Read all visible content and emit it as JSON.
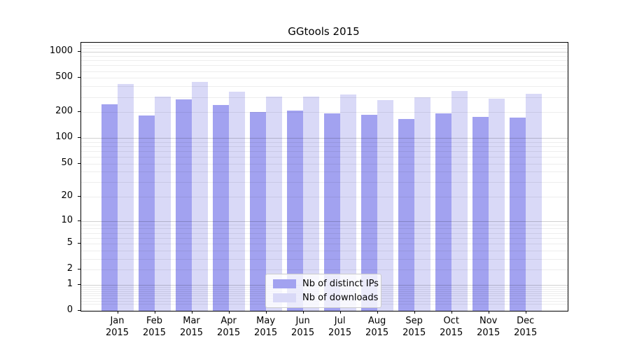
{
  "title": "GGtools 2015",
  "chart_data": {
    "type": "bar",
    "title": "GGtools 2015",
    "categories": [
      "Jan 2015",
      "Feb 2015",
      "Mar 2015",
      "Apr 2015",
      "May 2015",
      "Jun 2015",
      "Jul 2015",
      "Aug 2015",
      "Sep 2015",
      "Oct 2015",
      "Nov 2015",
      "Dec 2015"
    ],
    "month_labels": [
      "Jan",
      "Feb",
      "Mar",
      "Apr",
      "May",
      "Jun",
      "Jul",
      "Aug",
      "Sep",
      "Oct",
      "Nov",
      "Dec"
    ],
    "year_label": "2015",
    "series": [
      {
        "name": "Nb of distinct IPs",
        "color": "#a2a2f0",
        "values": [
          248,
          183,
          283,
          242,
          202,
          208,
          193,
          188,
          166,
          195,
          177,
          174
        ]
      },
      {
        "name": "Nb of downloads",
        "color": "#d9d9f7",
        "values": [
          425,
          305,
          450,
          345,
          302,
          302,
          321,
          277,
          298,
          353,
          288,
          325
        ]
      }
    ],
    "xlabel": "",
    "ylabel": "",
    "yscale": "log1p",
    "ylim": [
      0,
      1285
    ],
    "y_ticks": [
      0,
      1,
      2,
      5,
      10,
      20,
      50,
      100,
      200,
      500,
      1000
    ],
    "y_major_gridlines": [
      1,
      10,
      100,
      1000
    ],
    "grid": "on",
    "legend_position": "lower center"
  },
  "legend": {
    "items": [
      {
        "label": "Nb of distinct IPs",
        "color": "#a2a2f0"
      },
      {
        "label": "Nb of downloads",
        "color": "#d9d9f7"
      }
    ]
  }
}
